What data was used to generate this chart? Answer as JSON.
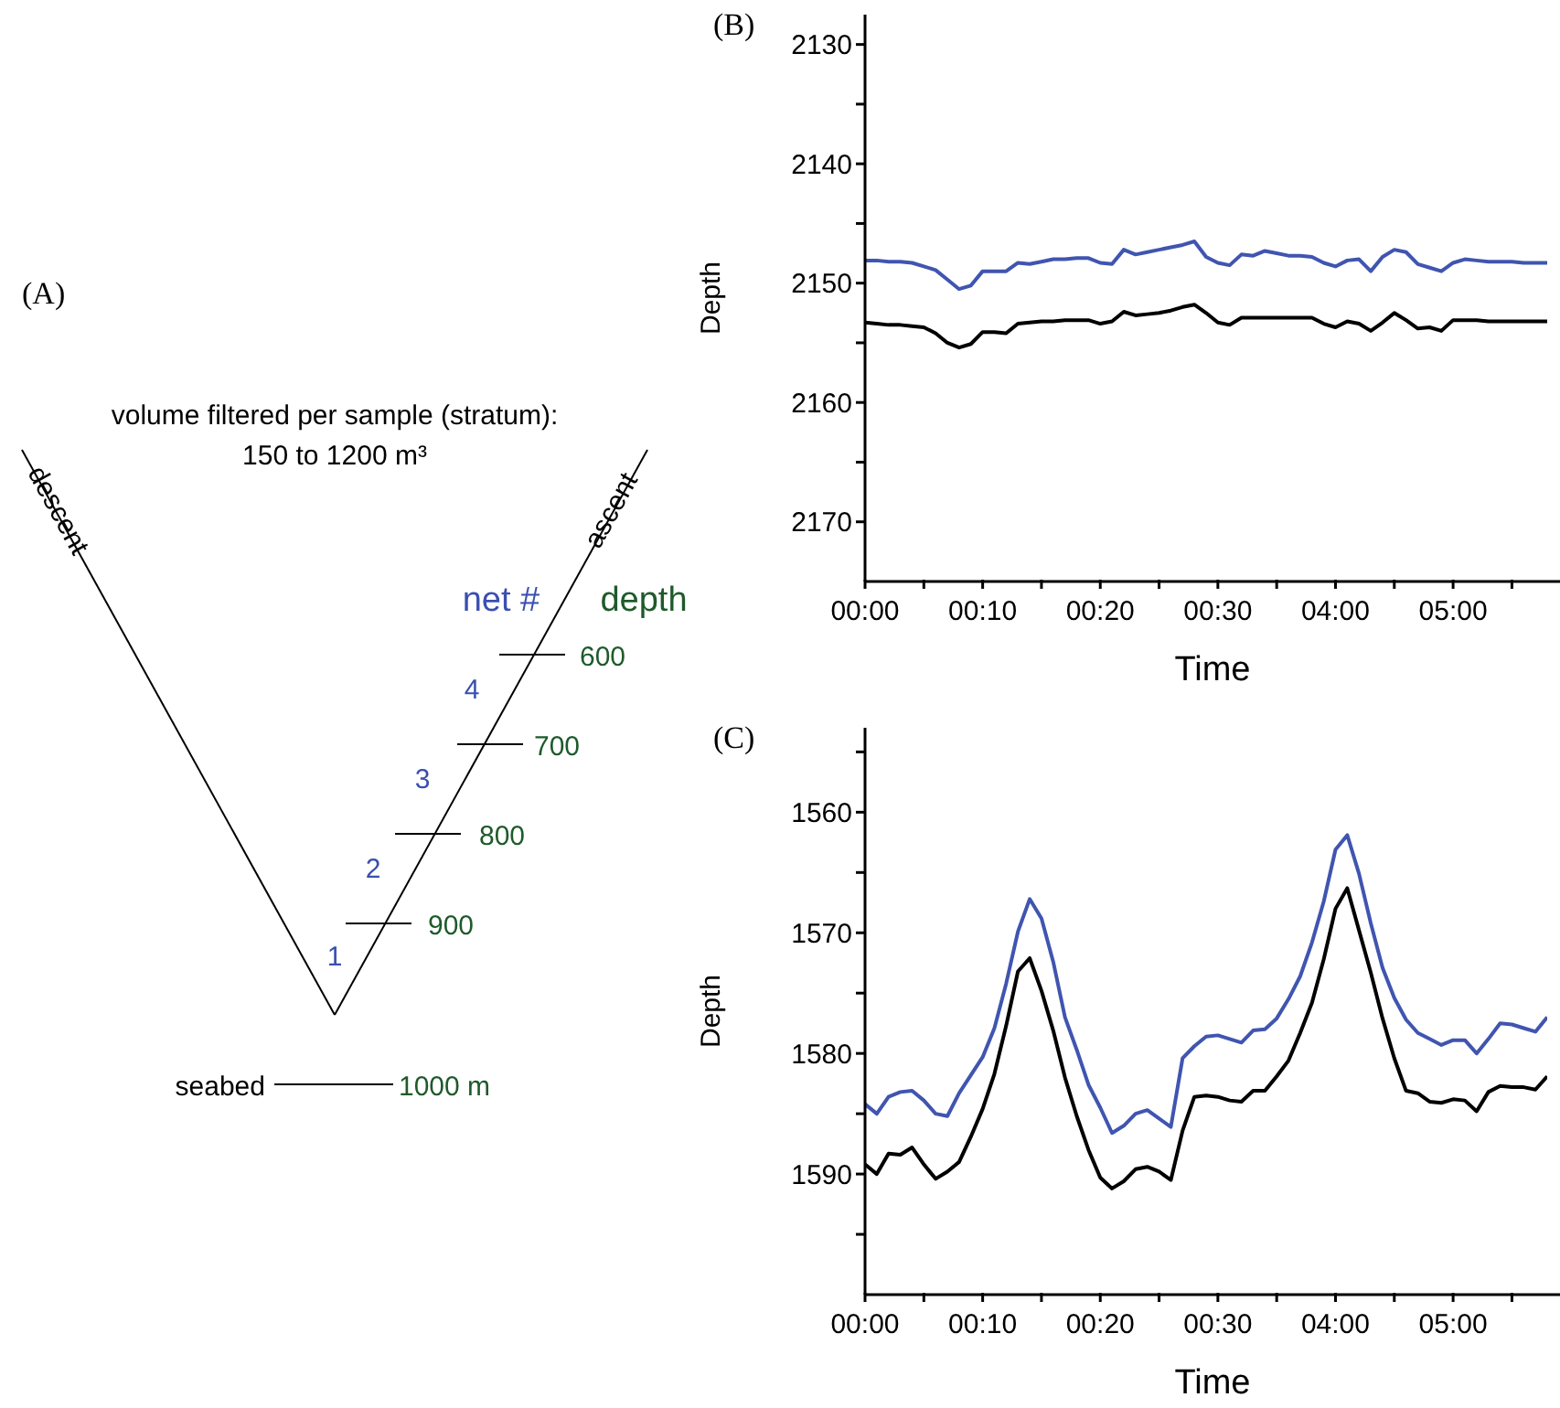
{
  "chart_data": [
    {
      "type": "other",
      "title": "(A)",
      "annotations": [
        "volume filtered per sample (stratum):",
        "150 to 1200 m³",
        "descent",
        "ascent",
        "net #",
        "depth",
        "600",
        "700",
        "800",
        "900",
        "4",
        "3",
        "2",
        "1",
        "seabed",
        "1000 m"
      ]
    },
    {
      "type": "line",
      "title": "(B)",
      "xlabel": "Time",
      "ylabel": "Depth",
      "ylim": [
        2175,
        2127.5
      ],
      "categories": [
        "00:00",
        null,
        null,
        null,
        null,
        null,
        null,
        null,
        null,
        null,
        "00:10",
        null,
        null,
        null,
        null,
        null,
        null,
        null,
        null,
        null,
        "00:20",
        null,
        null,
        null,
        null,
        null,
        null,
        null,
        null,
        null,
        "00:30",
        null,
        null,
        null,
        null,
        null,
        null,
        null,
        null,
        null,
        "04:00",
        null,
        null,
        null,
        null,
        null,
        null,
        null,
        null,
        null,
        "05:00",
        null,
        null,
        null,
        null,
        null,
        null,
        null,
        null
      ],
      "yticks": [
        2130,
        {
          "value": 2135,
          "label": null
        },
        2140,
        {
          "value": 2145,
          "label": null
        },
        2150,
        {
          "value": 2155,
          "label": null
        },
        2160,
        {
          "value": 2165,
          "label": null
        },
        2170
      ],
      "series": [
        {
          "color": "#4055b0",
          "values": [
            2148.1,
            2148.1,
            2148.2,
            2148.2,
            2148.3,
            2148.6,
            2148.9,
            2149.7,
            2150.5,
            2150.2,
            2149.0,
            2149.0,
            2149.0,
            2148.3,
            2148.4,
            2148.2,
            2148.0,
            2148.0,
            2147.9,
            2147.9,
            2148.3,
            2148.4,
            2147.2,
            2147.6,
            2147.4,
            2147.2,
            2147.0,
            2146.8,
            2146.5,
            2147.8,
            2148.3,
            2148.5,
            2147.6,
            2147.7,
            2147.3,
            2147.5,
            2147.7,
            2147.7,
            2147.8,
            2148.3,
            2148.6,
            2148.1,
            2148.0,
            2149.0,
            2147.8,
            2147.2,
            2147.4,
            2148.4,
            2148.7,
            2149.0,
            2148.3,
            2148.0,
            2148.1,
            2148.2,
            2148.2,
            2148.2,
            2148.3,
            2148.3,
            2148.3
          ]
        },
        {
          "color": "#000000",
          "values": [
            2153.3,
            2153.4,
            2153.5,
            2153.5,
            2153.6,
            2153.7,
            2154.2,
            2155.0,
            2155.4,
            2155.1,
            2154.1,
            2154.1,
            2154.2,
            2153.4,
            2153.3,
            2153.2,
            2153.2,
            2153.1,
            2153.1,
            2153.1,
            2153.4,
            2153.2,
            2152.4,
            2152.7,
            2152.6,
            2152.5,
            2152.3,
            2152.0,
            2151.8,
            2152.5,
            2153.3,
            2153.5,
            2152.9,
            2152.9,
            2152.9,
            2152.9,
            2152.9,
            2152.9,
            2152.9,
            2153.4,
            2153.7,
            2153.2,
            2153.4,
            2154.0,
            2153.3,
            2152.5,
            2153.1,
            2153.8,
            2153.7,
            2154.0,
            2153.1,
            2153.1,
            2153.1,
            2153.2,
            2153.2,
            2153.2,
            2153.2,
            2153.2,
            2153.2
          ]
        }
      ]
    },
    {
      "type": "line",
      "title": "(C)",
      "xlabel": "Time",
      "ylabel": "Depth",
      "ylim": [
        1600,
        1553
      ],
      "categories": [
        "00:00",
        null,
        null,
        null,
        null,
        null,
        null,
        null,
        null,
        null,
        "00:10",
        null,
        null,
        null,
        null,
        null,
        null,
        null,
        null,
        null,
        "00:20",
        null,
        null,
        null,
        null,
        null,
        null,
        null,
        null,
        null,
        "00:30",
        null,
        null,
        null,
        null,
        null,
        null,
        null,
        null,
        null,
        "04:00",
        null,
        null,
        null,
        null,
        null,
        null,
        null,
        null,
        null,
        "05:00",
        null,
        null,
        null,
        null,
        null,
        null,
        null,
        null
      ],
      "yticks": [
        {
          "value": 1555,
          "label": null
        },
        1560,
        {
          "value": 1565,
          "label": null
        },
        1570,
        {
          "value": 1575,
          "label": null
        },
        1580,
        {
          "value": 1585,
          "label": null
        },
        1590,
        {
          "value": 1595,
          "label": null
        }
      ],
      "series": [
        {
          "color": "#4055b0",
          "values": [
            1584.2,
            1585.0,
            1583.6,
            1583.2,
            1583.1,
            1583.9,
            1585.0,
            1585.2,
            1583.3,
            1581.8,
            1580.3,
            1577.9,
            1574.2,
            1569.9,
            1567.2,
            1568.8,
            1572.4,
            1577.0,
            1579.7,
            1582.6,
            1584.5,
            1586.6,
            1586.0,
            1585.0,
            1584.7,
            1585.4,
            1586.1,
            1580.4,
            1579.4,
            1578.6,
            1578.5,
            1578.8,
            1579.1,
            1578.1,
            1578.0,
            1577.1,
            1575.5,
            1573.6,
            1570.8,
            1567.4,
            1563.1,
            1561.9,
            1565.1,
            1569.2,
            1572.9,
            1575.4,
            1577.2,
            1578.3,
            1578.8,
            1579.3,
            1578.9,
            1578.9,
            1580.0,
            1578.8,
            1577.5,
            1577.6,
            1577.9,
            1578.2,
            1577.0
          ]
        },
        {
          "color": "#000000",
          "values": [
            1589.2,
            1590.0,
            1588.3,
            1588.4,
            1587.8,
            1589.2,
            1590.4,
            1589.8,
            1589.0,
            1586.9,
            1584.6,
            1581.7,
            1577.7,
            1573.2,
            1572.1,
            1574.8,
            1578.1,
            1582.0,
            1585.2,
            1588.0,
            1590.3,
            1591.2,
            1590.6,
            1589.6,
            1589.4,
            1589.8,
            1590.5,
            1586.4,
            1583.6,
            1583.5,
            1583.6,
            1583.9,
            1584.0,
            1583.1,
            1583.1,
            1581.9,
            1580.6,
            1578.3,
            1575.8,
            1572.2,
            1568.0,
            1566.3,
            1569.8,
            1573.3,
            1577.1,
            1580.4,
            1583.1,
            1583.3,
            1584.0,
            1584.1,
            1583.8,
            1583.9,
            1584.8,
            1583.2,
            1582.7,
            1582.8,
            1582.8,
            1583.0,
            1581.9
          ]
        }
      ]
    }
  ]
}
